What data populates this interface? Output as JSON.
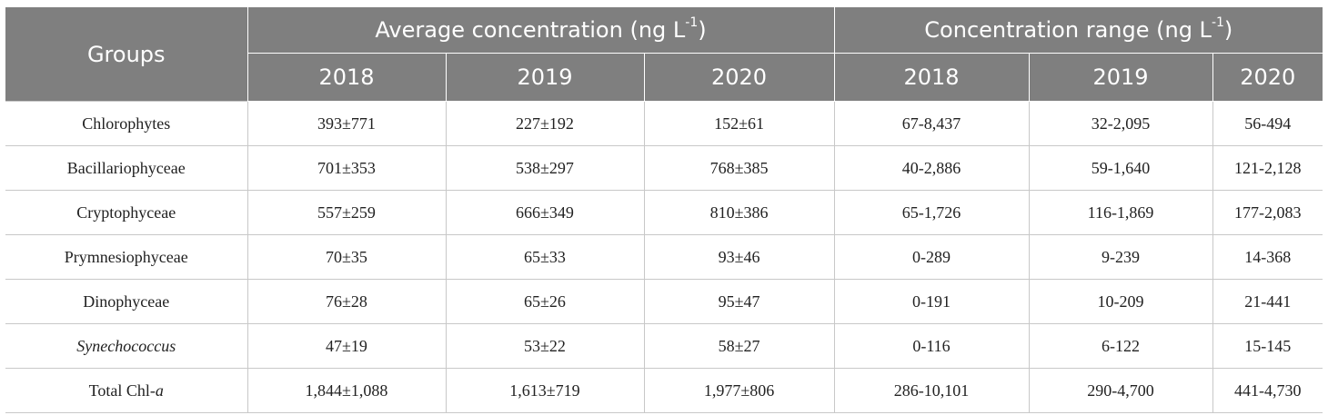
{
  "header": {
    "groups_label": "Groups",
    "average_label": "Average concentration (ng L",
    "average_sup": "-1",
    "average_close": ")",
    "range_label": "Concentration range (ng L",
    "range_sup": "-1",
    "range_close": ")",
    "years": [
      "2018",
      "2019",
      "2020",
      "2018",
      "2019",
      "2020"
    ]
  },
  "rows": [
    {
      "group": "Chlorophytes",
      "group_suffix": "",
      "italic": false,
      "avg2018": "393±771",
      "avg2019": "227±192",
      "avg2020": "152±61",
      "rng2018": "67-8,437",
      "rng2019": "32-2,095",
      "rng2020": "56-494"
    },
    {
      "group": "Bacillariophyceae",
      "group_suffix": "",
      "italic": false,
      "avg2018": "701±353",
      "avg2019": "538±297",
      "avg2020": "768±385",
      "rng2018": "40-2,886",
      "rng2019": "59-1,640",
      "rng2020": "121-2,128"
    },
    {
      "group": "Cryptophyceae",
      "group_suffix": "",
      "italic": false,
      "avg2018": "557±259",
      "avg2019": "666±349",
      "avg2020": "810±386",
      "rng2018": "65-1,726",
      "rng2019": "116-1,869",
      "rng2020": "177-2,083"
    },
    {
      "group": "Prymnesiophyceae",
      "group_suffix": "",
      "italic": false,
      "avg2018": "70±35",
      "avg2019": "65±33",
      "avg2020": "93±46",
      "rng2018": "0-289",
      "rng2019": "9-239",
      "rng2020": "14-368"
    },
    {
      "group": "Dinophyceae",
      "group_suffix": "",
      "italic": false,
      "avg2018": "76±28",
      "avg2019": "65±26",
      "avg2020": "95±47",
      "rng2018": "0-191",
      "rng2019": "10-209",
      "rng2020": "21-441"
    },
    {
      "group": "Synechococcus",
      "group_suffix": "",
      "italic": true,
      "avg2018": "47±19",
      "avg2019": "53±22",
      "avg2020": "58±27",
      "rng2018": "0-116",
      "rng2019": "6-122",
      "rng2020": "15-145"
    },
    {
      "group": "Total Chl-",
      "group_suffix": "a",
      "italic": false,
      "avg2018": "1,844±1,088",
      "avg2019": "1,613±719",
      "avg2020": "1,977±806",
      "rng2018": "286-10,101",
      "rng2019": "290-4,700",
      "rng2020": "441-4,730"
    }
  ]
}
